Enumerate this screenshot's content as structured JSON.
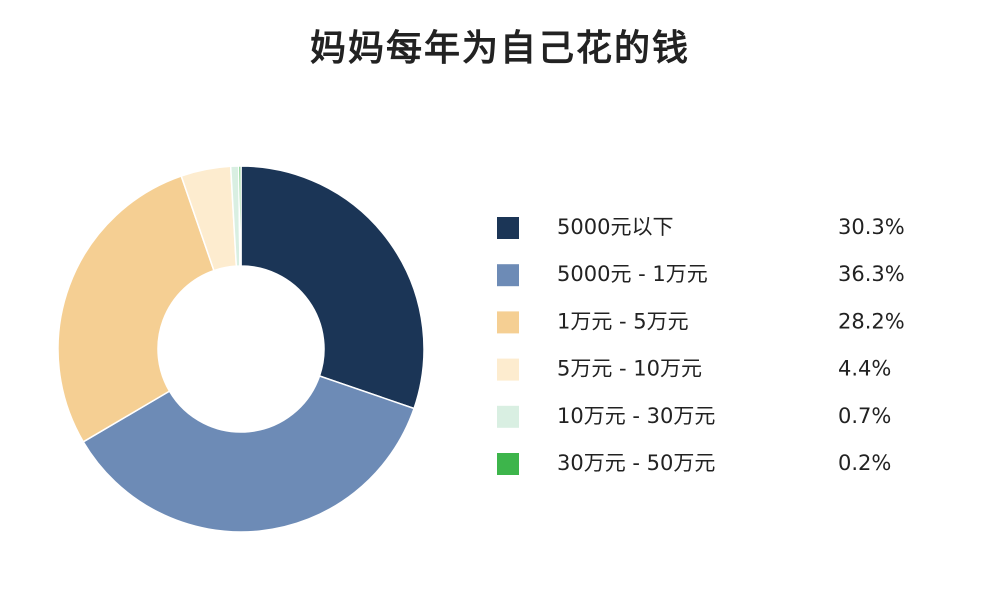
{
  "chart_data": {
    "type": "pie",
    "donut": true,
    "title": "妈妈每年为自己花的钱",
    "categories": [
      "5000元以下",
      "5000元 - 1万元",
      "1万元 - 5万元",
      "5万元 - 10万元",
      "10万元 - 30万元",
      "30万元 - 50万元"
    ],
    "values": [
      30.3,
      36.3,
      28.2,
      4.4,
      0.7,
      0.2
    ],
    "value_labels": [
      "30.3%",
      "36.3%",
      "28.2%",
      "4.4%",
      "0.7%",
      "0.2%"
    ],
    "colors": [
      "#1b3556",
      "#6d8bb6",
      "#f5cf93",
      "#fdeccf",
      "#d9efe2",
      "#3db54b"
    ]
  }
}
